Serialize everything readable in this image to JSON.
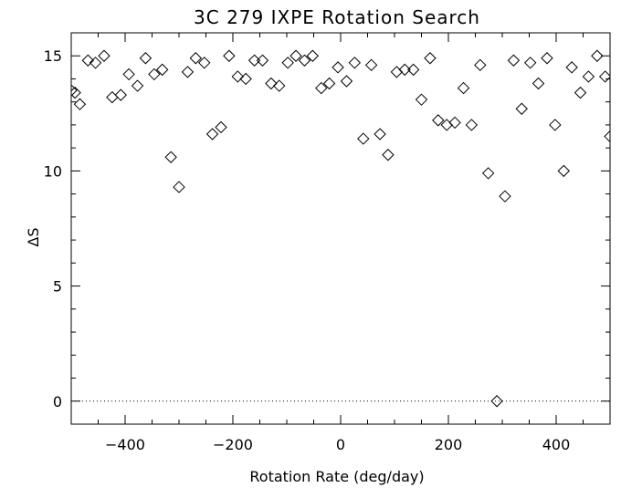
{
  "chart_data": {
    "type": "scatter",
    "title": "3C 279 IXPE Rotation Search",
    "xlabel": "Rotation Rate (deg/day)",
    "ylabel": "ΔS",
    "xlim": [
      -500,
      500
    ],
    "ylim": [
      -1,
      16
    ],
    "xticks": [
      -400,
      -200,
      0,
      200,
      400
    ],
    "xtick_labels": [
      "−400",
      "−200",
      "0",
      "200",
      "400"
    ],
    "yticks": [
      0,
      5,
      10,
      15
    ],
    "ytick_labels": [
      "0",
      "5",
      "10",
      "15"
    ],
    "reference_line": {
      "y": 0,
      "style": "dotted"
    },
    "marker": "diamond",
    "grid": false,
    "series": [
      {
        "x": [
          -500,
          -493,
          -484,
          -469,
          -455,
          -439,
          -424,
          -408,
          -393,
          -377,
          -362,
          -346,
          -331,
          -315,
          -300,
          -284,
          -269,
          -253,
          -238,
          -222,
          -207,
          -191,
          -176,
          -160,
          -145,
          -129,
          -114,
          -98,
          -83,
          -67,
          -52,
          -36,
          -21,
          -5,
          11,
          26,
          42,
          57,
          73,
          88,
          104,
          119,
          135,
          150,
          166,
          181,
          197,
          212,
          228,
          243,
          259,
          274,
          290,
          305,
          321,
          336,
          352,
          367,
          383,
          398,
          414,
          429,
          445,
          460,
          476,
          491,
          500
        ],
        "y": [
          13.5,
          13.4,
          12.9,
          14.8,
          14.7,
          15.0,
          13.2,
          13.3,
          14.2,
          13.7,
          14.9,
          14.2,
          14.4,
          10.6,
          9.3,
          14.3,
          14.9,
          14.7,
          11.6,
          11.9,
          15.0,
          14.1,
          14.0,
          14.8,
          14.8,
          13.8,
          13.7,
          14.7,
          15.0,
          14.8,
          15.0,
          13.6,
          13.8,
          14.5,
          13.9,
          14.7,
          11.4,
          14.6,
          11.6,
          10.7,
          14.3,
          14.4,
          14.4,
          13.1,
          14.9,
          12.2,
          12.0,
          12.1,
          13.6,
          12.0,
          14.6,
          9.9,
          0.0,
          8.9,
          14.8,
          12.7,
          14.7,
          13.8,
          14.9,
          12.0,
          10.0,
          14.5,
          13.4,
          14.1,
          15.0,
          14.1,
          11.5
        ]
      }
    ]
  }
}
